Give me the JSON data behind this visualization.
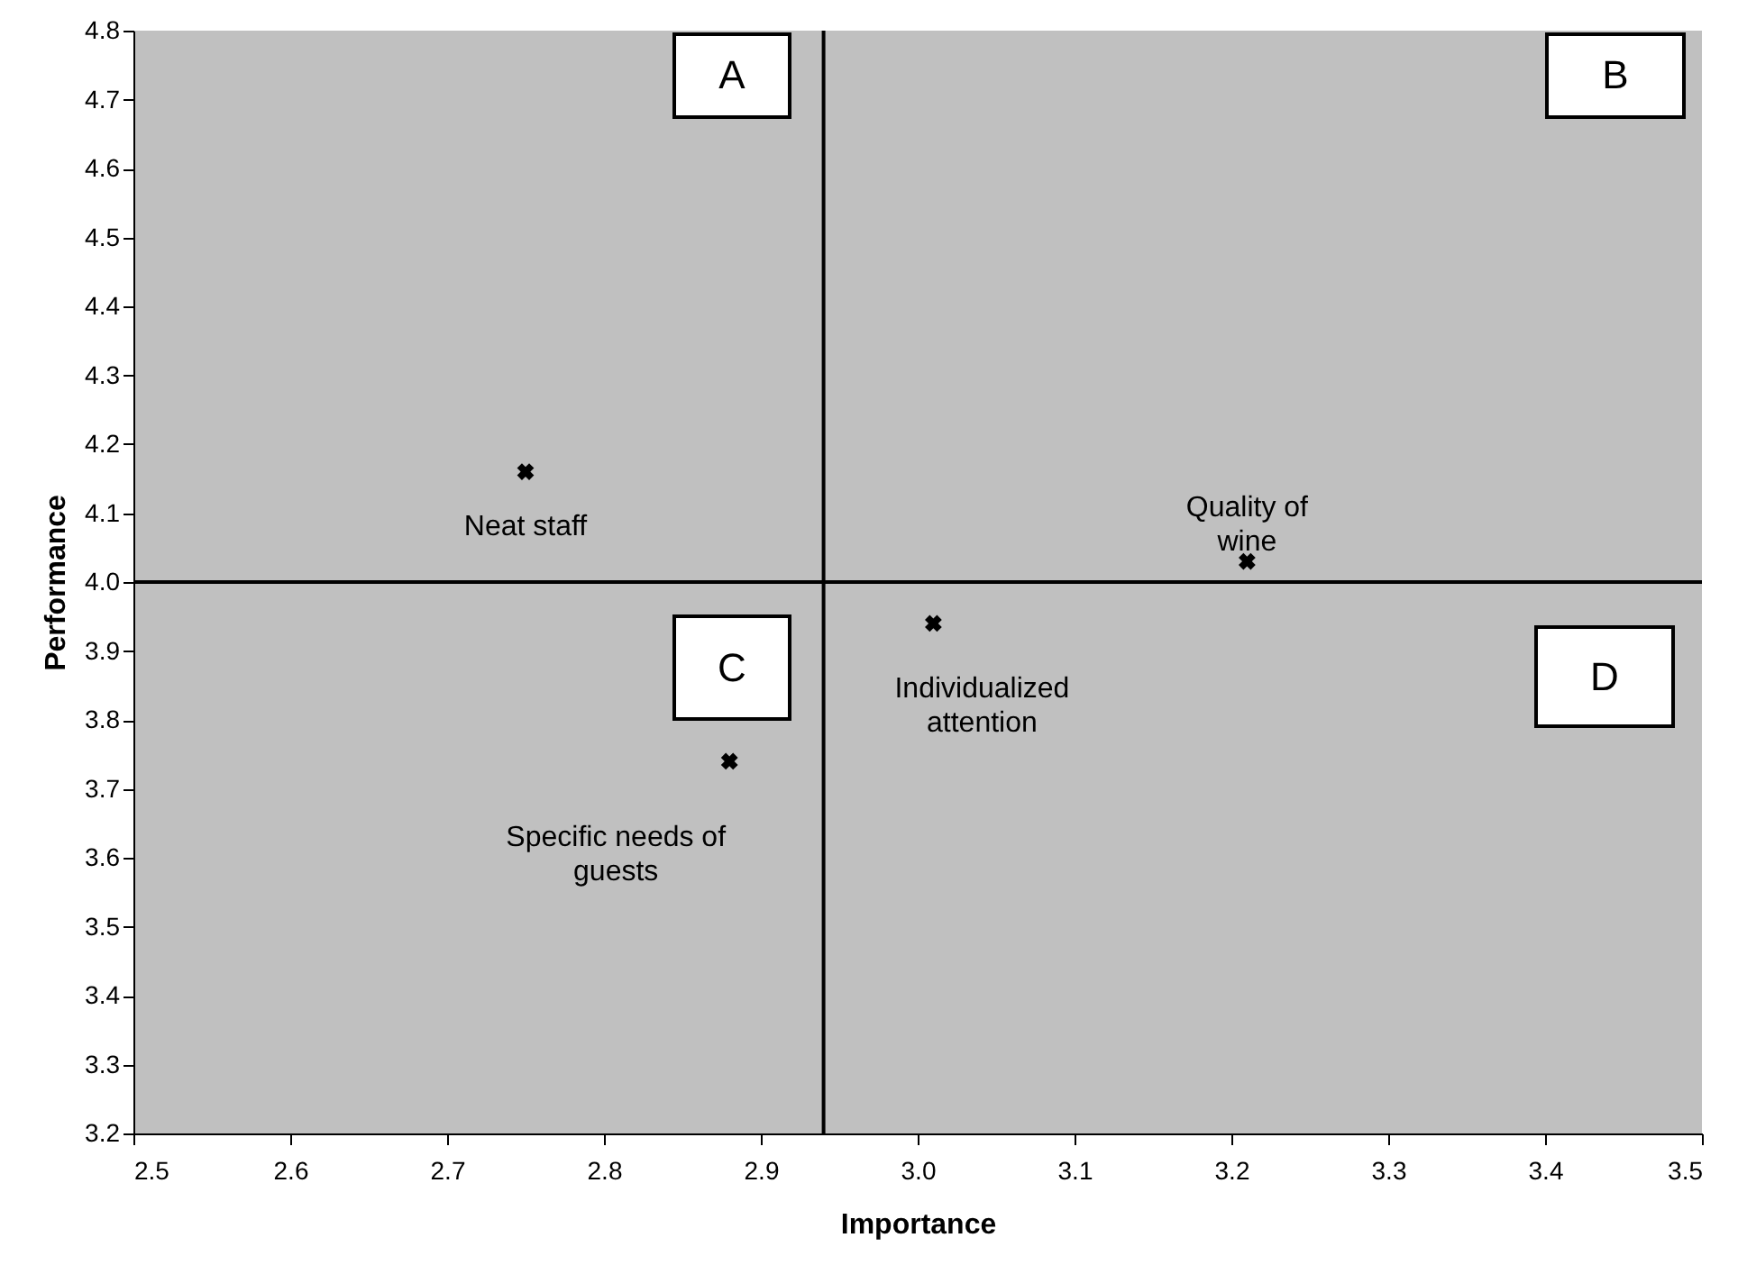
{
  "chart_data": {
    "type": "scatter",
    "xlabel": "Importance",
    "ylabel": "Performance",
    "xlim": [
      2.5,
      3.5
    ],
    "xticks": [
      2.5,
      2.6,
      2.7,
      2.8,
      2.9,
      {
        "value": 3,
        "label": "3.0"
      },
      3.1,
      3.2,
      3.3,
      3.4,
      3.5
    ],
    "ylim": [
      3.2,
      4.8
    ],
    "yticks": [
      3.2,
      3.3,
      3.4,
      3.5,
      3.6,
      3.7,
      3.8,
      3.9,
      {
        "value": 4,
        "label": "4.0"
      },
      4.1,
      4.2,
      4.3,
      4.4,
      4.5,
      4.6,
      4.7,
      4.8
    ],
    "marker": "cross",
    "grid": false,
    "legend": false,
    "series": [
      {
        "name": "Neat staff",
        "color": "#000000",
        "x": [
          2.75
        ],
        "values": [
          4.16
        ]
      },
      {
        "name": "Quality of wine",
        "color": "#000000",
        "x": [
          3.21
        ],
        "values": [
          4.03
        ]
      },
      {
        "name": "Individualized attention",
        "color": "#000000",
        "x": [
          3.01
        ],
        "values": [
          3.94
        ]
      },
      {
        "name": "Specific needs of guests",
        "color": "#000000",
        "x": [
          2.88
        ],
        "values": [
          3.74
        ]
      }
    ],
    "ref_lines": [
      {
        "axis": "x",
        "value": 2.94,
        "color": "#000000"
      },
      {
        "axis": "y",
        "value": 4.0,
        "color": "#000000"
      }
    ],
    "annotations": [
      "A",
      "B",
      "C",
      "D"
    ]
  }
}
